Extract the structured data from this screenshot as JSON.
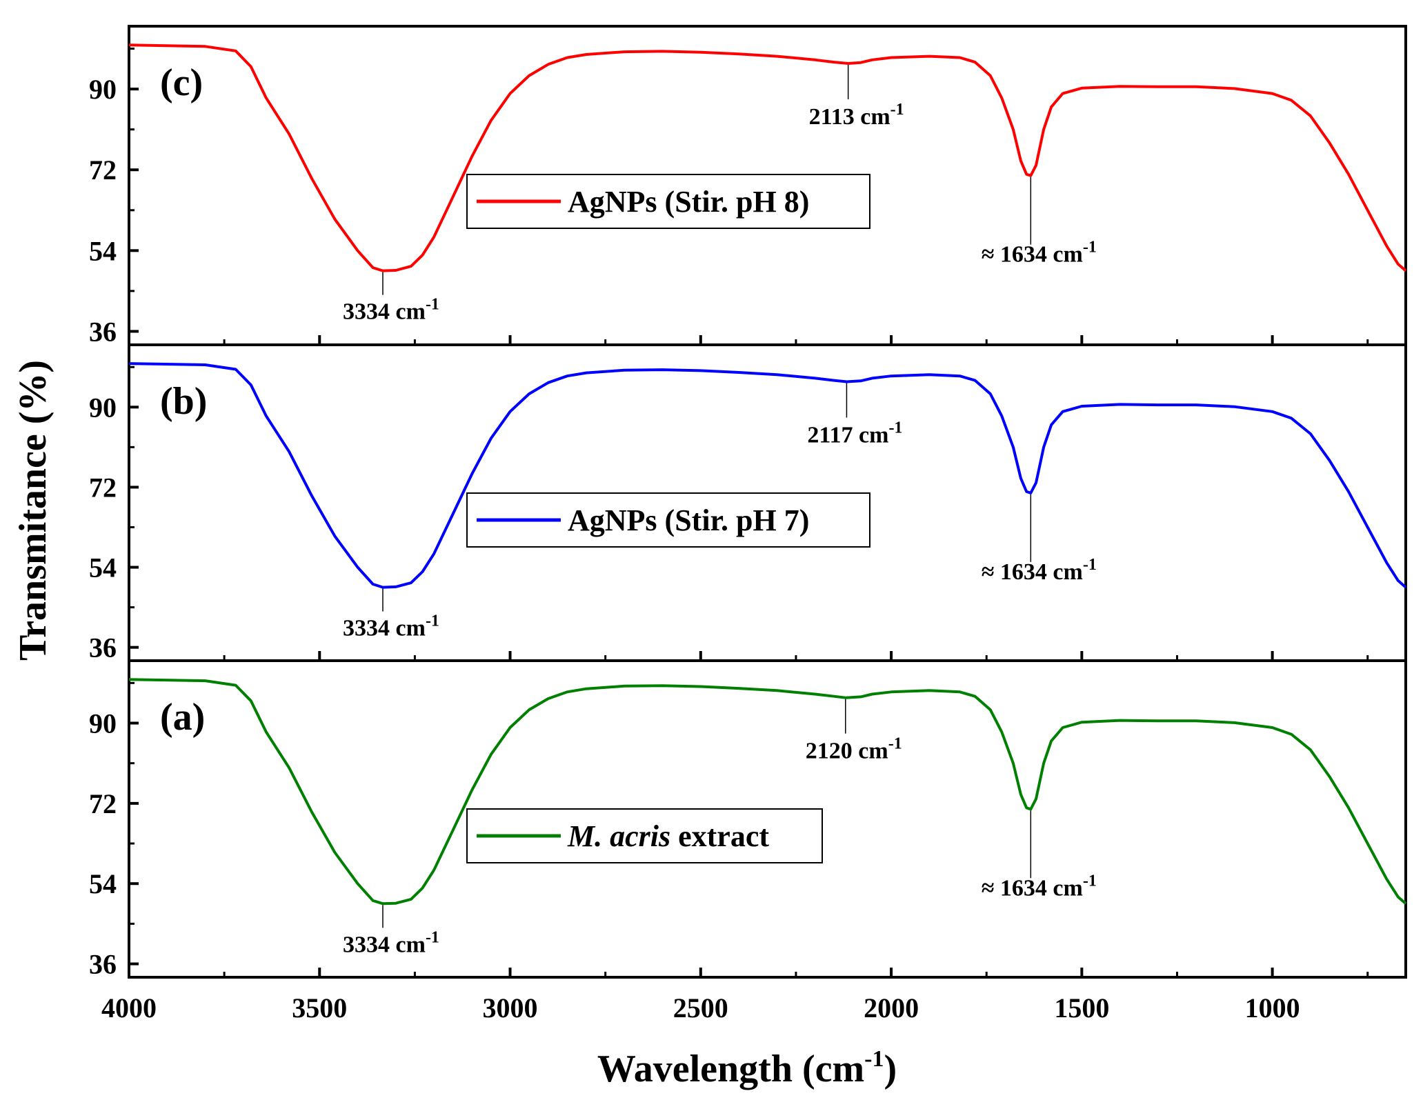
{
  "chart_data": {
    "type": "line",
    "xlabel": "Wavelength (cm",
    "xlabel_sup": "-1",
    "xlabel_end": ")",
    "ylabel": "Transmitance (%)",
    "xlim": [
      4000,
      650
    ],
    "x_ticks": [
      "4000",
      "3500",
      "3000",
      "2500",
      "2000",
      "1500",
      "1000"
    ],
    "panels": [
      {
        "id": "c",
        "label": "(c)",
        "color": "#ff0000",
        "ylim": [
          33,
          104
        ],
        "y_ticks": [
          "90",
          "72",
          "54",
          "36"
        ],
        "legend": "AgNPs (Stir. pH 8)",
        "legend_prefix": "",
        "legend_suffix": "",
        "annotations": [
          {
            "x": 3334,
            "prefix": "",
            "text": "3334 cm",
            "sup": "-1",
            "placement": "below"
          },
          {
            "x": 2113,
            "prefix": "",
            "text": "2113 cm",
            "sup": "-1",
            "placement": "below"
          },
          {
            "x": 1634,
            "prefix": "≈ ",
            "text": "1634 cm",
            "sup": "-1",
            "placement": "below"
          }
        ],
        "points": [
          [
            4000,
            99.8
          ],
          [
            3800,
            99.5
          ],
          [
            3720,
            98.5
          ],
          [
            3680,
            95
          ],
          [
            3640,
            88
          ],
          [
            3580,
            80
          ],
          [
            3520,
            70
          ],
          [
            3460,
            61
          ],
          [
            3400,
            54
          ],
          [
            3360,
            50.2
          ],
          [
            3334,
            49.5
          ],
          [
            3300,
            49.6
          ],
          [
            3260,
            50.5
          ],
          [
            3230,
            53
          ],
          [
            3200,
            57
          ],
          [
            3150,
            66
          ],
          [
            3100,
            75
          ],
          [
            3050,
            83
          ],
          [
            3000,
            89
          ],
          [
            2950,
            93
          ],
          [
            2900,
            95.5
          ],
          [
            2850,
            97
          ],
          [
            2800,
            97.7
          ],
          [
            2700,
            98.3
          ],
          [
            2600,
            98.4
          ],
          [
            2500,
            98.2
          ],
          [
            2400,
            97.8
          ],
          [
            2300,
            97.3
          ],
          [
            2200,
            96.5
          ],
          [
            2150,
            96
          ],
          [
            2113,
            95.7
          ],
          [
            2080,
            95.9
          ],
          [
            2050,
            96.5
          ],
          [
            2000,
            97
          ],
          [
            1900,
            97.3
          ],
          [
            1820,
            97
          ],
          [
            1780,
            96
          ],
          [
            1740,
            93
          ],
          [
            1710,
            88
          ],
          [
            1680,
            81
          ],
          [
            1660,
            74
          ],
          [
            1645,
            71
          ],
          [
            1634,
            70.7
          ],
          [
            1620,
            73
          ],
          [
            1600,
            81
          ],
          [
            1580,
            86
          ],
          [
            1550,
            89
          ],
          [
            1500,
            90.2
          ],
          [
            1400,
            90.6
          ],
          [
            1300,
            90.5
          ],
          [
            1200,
            90.5
          ],
          [
            1100,
            90.1
          ],
          [
            1000,
            89
          ],
          [
            950,
            87.5
          ],
          [
            900,
            84
          ],
          [
            850,
            78
          ],
          [
            800,
            71
          ],
          [
            750,
            63
          ],
          [
            700,
            55
          ],
          [
            670,
            51
          ],
          [
            650,
            49.5
          ]
        ]
      },
      {
        "id": "b",
        "label": "(b)",
        "color": "#0000ff",
        "ylim": [
          33,
          104
        ],
        "y_ticks": [
          "90",
          "72",
          "54",
          "36"
        ],
        "legend": "AgNPs (Stir. pH 7)",
        "legend_prefix": "",
        "legend_suffix": "",
        "annotations": [
          {
            "x": 3334,
            "prefix": "",
            "text": "3334 cm",
            "sup": "-1",
            "placement": "below"
          },
          {
            "x": 2117,
            "prefix": "",
            "text": "2117 cm",
            "sup": "-1",
            "placement": "below"
          },
          {
            "x": 1634,
            "prefix": "≈ ",
            "text": "1634 cm",
            "sup": "-1",
            "placement": "below"
          }
        ],
        "points": [
          [
            4000,
            99.8
          ],
          [
            3800,
            99.5
          ],
          [
            3720,
            98.5
          ],
          [
            3680,
            95
          ],
          [
            3640,
            88
          ],
          [
            3580,
            80
          ],
          [
            3520,
            70
          ],
          [
            3460,
            61
          ],
          [
            3400,
            54
          ],
          [
            3360,
            50.2
          ],
          [
            3334,
            49.5
          ],
          [
            3300,
            49.6
          ],
          [
            3260,
            50.5
          ],
          [
            3230,
            53
          ],
          [
            3200,
            57
          ],
          [
            3150,
            66
          ],
          [
            3100,
            75
          ],
          [
            3050,
            83
          ],
          [
            3000,
            89
          ],
          [
            2950,
            93
          ],
          [
            2900,
            95.5
          ],
          [
            2850,
            97
          ],
          [
            2800,
            97.7
          ],
          [
            2700,
            98.3
          ],
          [
            2600,
            98.4
          ],
          [
            2500,
            98.2
          ],
          [
            2400,
            97.8
          ],
          [
            2300,
            97.3
          ],
          [
            2200,
            96.5
          ],
          [
            2150,
            96
          ],
          [
            2117,
            95.7
          ],
          [
            2080,
            95.9
          ],
          [
            2050,
            96.5
          ],
          [
            2000,
            97
          ],
          [
            1900,
            97.3
          ],
          [
            1820,
            97
          ],
          [
            1780,
            96
          ],
          [
            1740,
            93
          ],
          [
            1710,
            88
          ],
          [
            1680,
            81
          ],
          [
            1660,
            74
          ],
          [
            1645,
            71
          ],
          [
            1634,
            70.7
          ],
          [
            1620,
            73
          ],
          [
            1600,
            81
          ],
          [
            1580,
            86
          ],
          [
            1550,
            89
          ],
          [
            1500,
            90.2
          ],
          [
            1400,
            90.6
          ],
          [
            1300,
            90.5
          ],
          [
            1200,
            90.5
          ],
          [
            1100,
            90.1
          ],
          [
            1000,
            89
          ],
          [
            950,
            87.5
          ],
          [
            900,
            84
          ],
          [
            850,
            78
          ],
          [
            800,
            71
          ],
          [
            750,
            63
          ],
          [
            700,
            55
          ],
          [
            670,
            51
          ],
          [
            650,
            49.5
          ]
        ]
      },
      {
        "id": "a",
        "label": "(a)",
        "color": "#008000",
        "ylim": [
          33,
          104
        ],
        "y_ticks": [
          "90",
          "72",
          "54",
          "36"
        ],
        "legend": "extract",
        "legend_prefix": "M. acris",
        "legend_suffix": " extract",
        "annotations": [
          {
            "x": 3334,
            "prefix": "",
            "text": "3334 cm",
            "sup": "-1",
            "placement": "below"
          },
          {
            "x": 2120,
            "prefix": "",
            "text": "2120 cm",
            "sup": "-1",
            "placement": "below"
          },
          {
            "x": 1634,
            "prefix": "≈ ",
            "text": "1634 cm",
            "sup": "-1",
            "placement": "below"
          }
        ],
        "points": [
          [
            4000,
            99.8
          ],
          [
            3800,
            99.5
          ],
          [
            3720,
            98.5
          ],
          [
            3680,
            95
          ],
          [
            3640,
            88
          ],
          [
            3580,
            80
          ],
          [
            3520,
            70
          ],
          [
            3460,
            61
          ],
          [
            3400,
            54
          ],
          [
            3360,
            50.2
          ],
          [
            3334,
            49.5
          ],
          [
            3300,
            49.6
          ],
          [
            3260,
            50.5
          ],
          [
            3230,
            53
          ],
          [
            3200,
            57
          ],
          [
            3150,
            66
          ],
          [
            3100,
            75
          ],
          [
            3050,
            83
          ],
          [
            3000,
            89
          ],
          [
            2950,
            93
          ],
          [
            2900,
            95.5
          ],
          [
            2850,
            97
          ],
          [
            2800,
            97.7
          ],
          [
            2700,
            98.3
          ],
          [
            2600,
            98.4
          ],
          [
            2500,
            98.2
          ],
          [
            2400,
            97.8
          ],
          [
            2300,
            97.3
          ],
          [
            2200,
            96.5
          ],
          [
            2150,
            96
          ],
          [
            2120,
            95.7
          ],
          [
            2080,
            95.9
          ],
          [
            2050,
            96.5
          ],
          [
            2000,
            97
          ],
          [
            1900,
            97.3
          ],
          [
            1820,
            97
          ],
          [
            1780,
            96
          ],
          [
            1740,
            93
          ],
          [
            1710,
            88
          ],
          [
            1680,
            81
          ],
          [
            1660,
            74
          ],
          [
            1645,
            71
          ],
          [
            1634,
            70.7
          ],
          [
            1620,
            73
          ],
          [
            1600,
            81
          ],
          [
            1580,
            86
          ],
          [
            1550,
            89
          ],
          [
            1500,
            90.2
          ],
          [
            1400,
            90.6
          ],
          [
            1300,
            90.5
          ],
          [
            1200,
            90.5
          ],
          [
            1100,
            90.1
          ],
          [
            1000,
            89
          ],
          [
            950,
            87.5
          ],
          [
            900,
            84
          ],
          [
            850,
            78
          ],
          [
            800,
            71
          ],
          [
            750,
            63
          ],
          [
            700,
            55
          ],
          [
            670,
            51
          ],
          [
            650,
            49.5
          ]
        ]
      }
    ]
  }
}
